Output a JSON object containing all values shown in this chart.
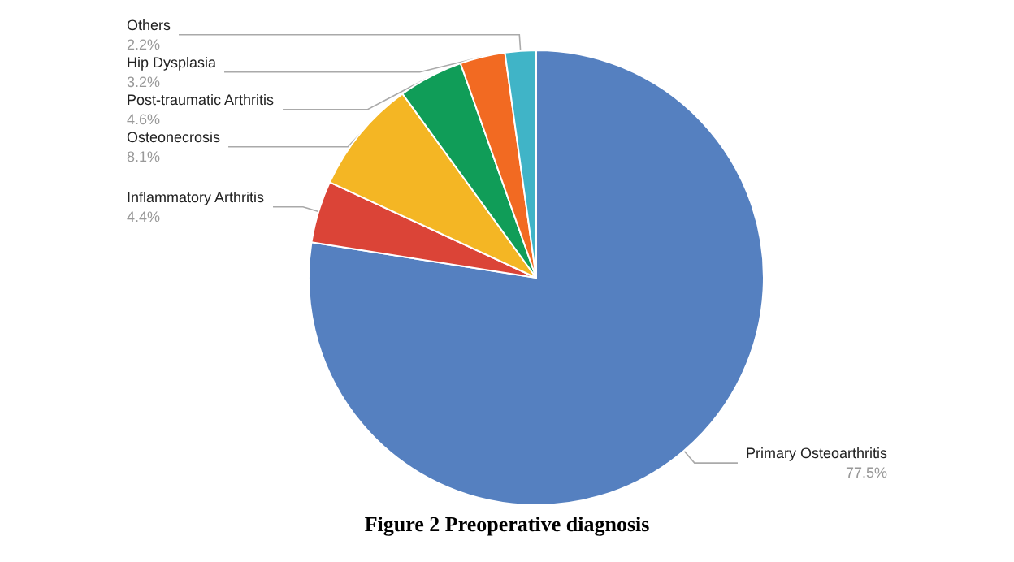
{
  "chart_data": {
    "type": "pie",
    "title": "Figure 2 Preoperative diagnosis",
    "categories": [
      "Primary Osteoarthritis",
      "Inflammatory Arthritis",
      "Osteonecrosis",
      "Post-traumatic Arthritis",
      "Hip Dysplasia",
      "Others"
    ],
    "values": [
      77.5,
      4.4,
      8.1,
      4.6,
      3.2,
      2.2
    ],
    "value_labels": [
      "77.5%",
      "4.4%",
      "8.1%",
      "4.6%",
      "3.2%",
      "2.2%"
    ],
    "colors": [
      "#5580c0",
      "#db4437",
      "#f4b624",
      "#109d58",
      "#f26a22",
      "#40b4c7"
    ],
    "legend": false
  }
}
